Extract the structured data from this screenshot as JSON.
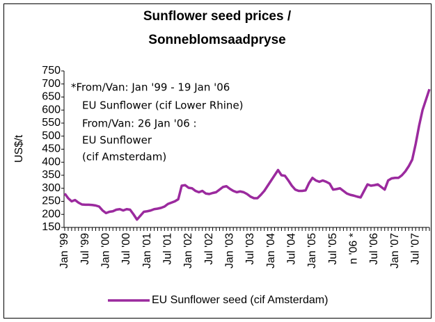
{
  "chart_data": {
    "type": "line",
    "title": [
      "Sunflower seed prices /",
      "Sonneblomsaadpryse"
    ],
    "y_label": "US$/t",
    "annotations": [
      "*From/Van: Jan '99 - 19 Jan '06",
      "EU Sunflower (cif Lower Rhine)",
      "From/Van: 26 Jan '06 :",
      "EU Sunflower",
      "(cif Amsterdam)"
    ],
    "categories": [
      "Jan '99",
      null,
      null,
      null,
      null,
      null,
      "Jul '99",
      null,
      null,
      null,
      null,
      null,
      "Jan '00",
      null,
      null,
      null,
      null,
      null,
      "Jul '00",
      null,
      null,
      null,
      null,
      null,
      "Jan '01",
      null,
      null,
      null,
      null,
      null,
      "Jul '01",
      null,
      null,
      null,
      null,
      null,
      "Jan '02",
      null,
      null,
      null,
      null,
      null,
      "Jul '02",
      null,
      null,
      null,
      null,
      null,
      "Jan '03",
      null,
      null,
      null,
      null,
      null,
      "Jul '03",
      null,
      null,
      null,
      null,
      null,
      "Jan '04",
      null,
      null,
      null,
      null,
      null,
      "Jul '04",
      null,
      null,
      null,
      null,
      null,
      "Jan '05",
      null,
      null,
      null,
      null,
      null,
      "Jul '05",
      null,
      null,
      null,
      null,
      null,
      "n '06 *",
      null,
      null,
      null,
      null,
      null,
      "Jul '06",
      null,
      null,
      null,
      null,
      null,
      "Jan '07",
      null,
      null,
      null,
      null,
      null,
      "Jul '07",
      null,
      null,
      null,
      null
    ],
    "series": [
      {
        "name": "EU Sunflower seed (cif Amsterdam)",
        "color": "#9b2a9e",
        "values": [
          280,
          262,
          250,
          255,
          245,
          238,
          237,
          237,
          236,
          234,
          230,
          215,
          205,
          210,
          212,
          218,
          220,
          215,
          220,
          218,
          200,
          180,
          195,
          210,
          212,
          215,
          220,
          222,
          225,
          230,
          240,
          245,
          250,
          258,
          310,
          312,
          302,
          300,
          290,
          285,
          290,
          280,
          278,
          282,
          285,
          295,
          305,
          308,
          298,
          290,
          285,
          288,
          285,
          278,
          268,
          262,
          262,
          275,
          290,
          310,
          330,
          350,
          370,
          350,
          348,
          330,
          310,
          295,
          290,
          290,
          292,
          320,
          340,
          330,
          325,
          330,
          325,
          318,
          295,
          297,
          300,
          290,
          280,
          275,
          272,
          268,
          265,
          290,
          315,
          310,
          312,
          315,
          305,
          295,
          330,
          338,
          340,
          340,
          350,
          365,
          385,
          410,
          470,
          540,
          600,
          640,
          680
        ]
      }
    ],
    "ylim": [
      150,
      750
    ],
    "yticks": [
      150,
      200,
      250,
      300,
      350,
      400,
      450,
      500,
      550,
      600,
      650,
      700,
      750
    ],
    "legend": "bottom"
  }
}
